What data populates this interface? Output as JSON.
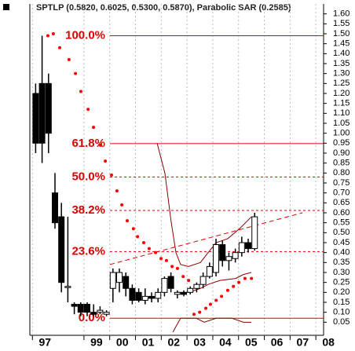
{
  "chart_data": {
    "type": "candlestick",
    "title": "SPTLP (0.5820, 0.6025, 0.5300, 0.5870), Parabolic SAR (0.2585)",
    "x": [
      1997.125,
      1997.375,
      1997.625,
      1997.875,
      1998.125,
      1998.375,
      1998.625,
      1998.875,
      1999.125,
      1999.375,
      1999.625,
      1999.875,
      2000.125,
      2000.375,
      2000.625,
      2000.875,
      2001.125,
      2001.375,
      2001.625,
      2001.875,
      2002.125,
      2002.375,
      2002.625,
      2002.875,
      2003.125,
      2003.375,
      2003.625,
      2003.875,
      2004.125,
      2004.375,
      2004.625,
      2004.875,
      2005.125,
      2005.375,
      2005.625
    ],
    "open": [
      1.2,
      1.25,
      1.25,
      0.7,
      0.58,
      0.23,
      0.14,
      0.14,
      0.14,
      0.1,
      0.1,
      0.09,
      0.22,
      0.25,
      0.28,
      0.22,
      0.2,
      0.16,
      0.18,
      0.17,
      0.2,
      0.28,
      0.19,
      0.2,
      0.2,
      0.22,
      0.24,
      0.28,
      0.3,
      0.44,
      0.36,
      0.37,
      0.4,
      0.45,
      0.42
    ],
    "high": [
      1.25,
      1.49,
      1.3,
      0.8,
      0.65,
      0.58,
      0.15,
      0.15,
      0.15,
      0.14,
      0.13,
      0.11,
      0.32,
      0.32,
      0.3,
      0.24,
      0.22,
      0.22,
      0.2,
      0.22,
      0.28,
      0.3,
      0.21,
      0.21,
      0.23,
      0.25,
      0.3,
      0.35,
      0.47,
      0.46,
      0.4,
      0.42,
      0.48,
      0.47,
      0.6
    ],
    "low": [
      0.9,
      0.85,
      0.9,
      0.52,
      0.2,
      0.15,
      0.09,
      0.08,
      0.08,
      0.08,
      0.09,
      0.08,
      0.15,
      0.2,
      0.18,
      0.14,
      0.15,
      0.14,
      0.15,
      0.15,
      0.18,
      0.2,
      0.17,
      0.18,
      0.19,
      0.2,
      0.22,
      0.27,
      0.28,
      0.33,
      0.31,
      0.35,
      0.38,
      0.4,
      0.41
    ],
    "close": [
      0.95,
      0.95,
      1.0,
      0.55,
      0.25,
      0.23,
      0.13,
      0.1,
      0.1,
      0.09,
      0.11,
      0.1,
      0.3,
      0.3,
      0.22,
      0.16,
      0.16,
      0.18,
      0.17,
      0.2,
      0.27,
      0.22,
      0.2,
      0.19,
      0.22,
      0.24,
      0.28,
      0.33,
      0.44,
      0.36,
      0.38,
      0.4,
      0.45,
      0.42,
      0.58
    ],
    "candle_color": "#000000",
    "sar": {
      "color": "#ff0000",
      "x": [
        1997.6,
        1997.81,
        1998.06,
        1998.42,
        1998.67,
        1998.88,
        1999.16,
        1999.37,
        1999.64,
        1999.83,
        2000.07,
        2000.28,
        2000.47,
        2000.68,
        2000.92,
        2001.08,
        2001.32,
        2001.53,
        2001.78,
        2001.99,
        2002.2,
        2002.42,
        2002.63,
        2002.85,
        2003.06,
        2003.27,
        2003.49,
        2003.73,
        2003.91,
        2004.13,
        2004.34,
        2004.58,
        2004.8,
        2005.01,
        2005.25,
        2005.5
      ],
      "values": [
        1.49,
        1.5,
        1.43,
        1.37,
        1.3,
        1.21,
        1.12,
        1.03,
        0.94,
        0.86,
        0.79,
        0.71,
        0.64,
        0.56,
        0.52,
        0.48,
        0.45,
        0.42,
        0.4,
        0.37,
        0.36,
        0.33,
        0.32,
        0.28,
        0.26,
        0.09,
        0.1,
        0.12,
        0.14,
        0.16,
        0.18,
        0.21,
        0.23,
        0.25,
        0.27,
        0.27
      ]
    },
    "levels": [
      {
        "label": "100.0%",
        "value": 1.49,
        "dashed": false
      },
      {
        "label": "61.8%",
        "value": 0.948,
        "dashed": false
      },
      {
        "label": "50.0%",
        "value": 0.78,
        "dashed": true
      },
      {
        "label": "38.2%",
        "value": 0.612,
        "dashed": true
      },
      {
        "label": "23.6%",
        "value": 0.405,
        "dashed": true
      },
      {
        "label": "0.0%",
        "value": 0.07,
        "dashed": false
      }
    ],
    "level_color": "#dd0000",
    "trendline": {
      "color": "#dd0000",
      "x": [
        2000.01,
        2007.48
      ],
      "values": [
        0.34,
        0.6
      ]
    },
    "bands": [
      {
        "color": "#8b0000",
        "x": [
          2001.84,
          2002.14,
          2002.39,
          2002.57,
          2002.75,
          2003.06,
          2003.52,
          2003.82,
          2004.13,
          2004.58,
          2005.04,
          2005.5
        ],
        "values": [
          0.95,
          0.8,
          0.55,
          0.4,
          0.34,
          0.33,
          0.35,
          0.4,
          0.45,
          0.47,
          0.52,
          0.58
        ]
      },
      {
        "color": "#8b0000",
        "x": [
          2002.6,
          2003.06,
          2003.52,
          2003.82,
          2004.28,
          2004.89,
          2005.19,
          2005.5
        ],
        "values": [
          0.2,
          0.2,
          0.22,
          0.24,
          0.26,
          0.27,
          0.29,
          0.3
        ]
      },
      {
        "color": "#8b0000",
        "x": [
          2002.45,
          2002.75,
          2003.36,
          2003.67,
          2004.13,
          2004.74,
          2005.19,
          2005.5
        ],
        "values": [
          0.0,
          0.07,
          0.07,
          0.05,
          0.07,
          0.07,
          0.05,
          0.05
        ]
      }
    ],
    "xlim": [
      1996.9,
      2008.3
    ],
    "xticks": [
      {
        "value": 1997,
        "label": "97"
      },
      {
        "value": 1999,
        "label": "99"
      },
      {
        "value": 2000,
        "label": "00"
      },
      {
        "value": 2001,
        "label": "01"
      },
      {
        "value": 2002,
        "label": "02"
      },
      {
        "value": 2003,
        "label": "03"
      },
      {
        "value": 2004,
        "label": "04"
      },
      {
        "value": 2005,
        "label": "05"
      },
      {
        "value": 2006,
        "label": "06"
      },
      {
        "value": 2007,
        "label": "07"
      },
      {
        "value": 2008,
        "label": "08"
      }
    ],
    "ylim": [
      0,
      1.65
    ],
    "yticks": [
      0.05,
      {
        "value": 0.1,
        "label": "0.10"
      },
      0.15,
      {
        "value": 0.2,
        "label": "0.20"
      },
      0.25,
      {
        "value": 0.3,
        "label": "0.30"
      },
      0.35,
      {
        "value": 0.4,
        "label": "0.40"
      },
      0.45,
      {
        "value": 0.5,
        "label": "0.50"
      },
      0.55,
      {
        "value": 0.6,
        "label": "0.60"
      },
      0.65,
      {
        "value": 0.7,
        "label": "0.70"
      },
      0.75,
      {
        "value": 0.8,
        "label": "0.80"
      },
      0.85,
      {
        "value": 0.9,
        "label": "0.90"
      },
      0.95,
      {
        "value": 1,
        "label": "1.00"
      },
      1.05,
      {
        "value": 1.1,
        "label": "1.10"
      },
      1.15,
      {
        "value": 1.2,
        "label": "1.20"
      },
      1.25,
      {
        "value": 1.3,
        "label": "1.30"
      },
      1.35,
      {
        "value": 1.4,
        "label": "1.40"
      },
      1.45,
      {
        "value": 1.5,
        "label": "1.50"
      },
      1.55,
      {
        "value": 1.6,
        "label": "1.60"
      }
    ],
    "grid": true
  }
}
